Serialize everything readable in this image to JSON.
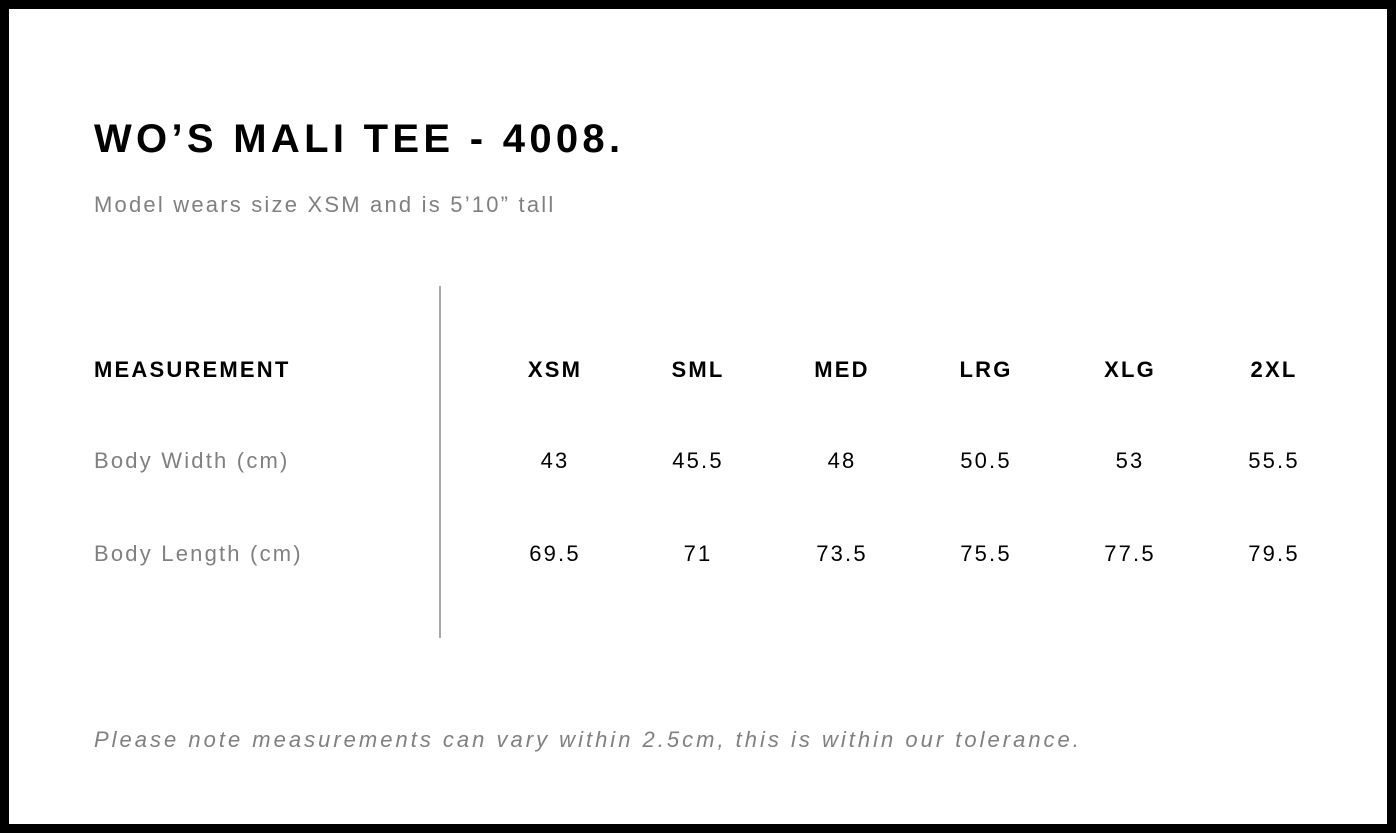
{
  "title": "WO’S MALI TEE - 4008.",
  "subtitle": "Model wears size XSM and is 5’10” tall",
  "table": {
    "header_label": "MEASUREMENT",
    "sizes": [
      "XSM",
      "SML",
      "MED",
      "LRG",
      "XLG",
      "2XL"
    ],
    "rows": [
      {
        "label": "Body Width (cm)",
        "values": [
          "43",
          "45.5",
          "48",
          "50.5",
          "53",
          "55.5"
        ]
      },
      {
        "label": "Body Length (cm)",
        "values": [
          "69.5",
          "71",
          "73.5",
          "75.5",
          "77.5",
          "79.5"
        ]
      }
    ]
  },
  "note": "Please note measurements can vary within 2.5cm, this is within our tolerance."
}
